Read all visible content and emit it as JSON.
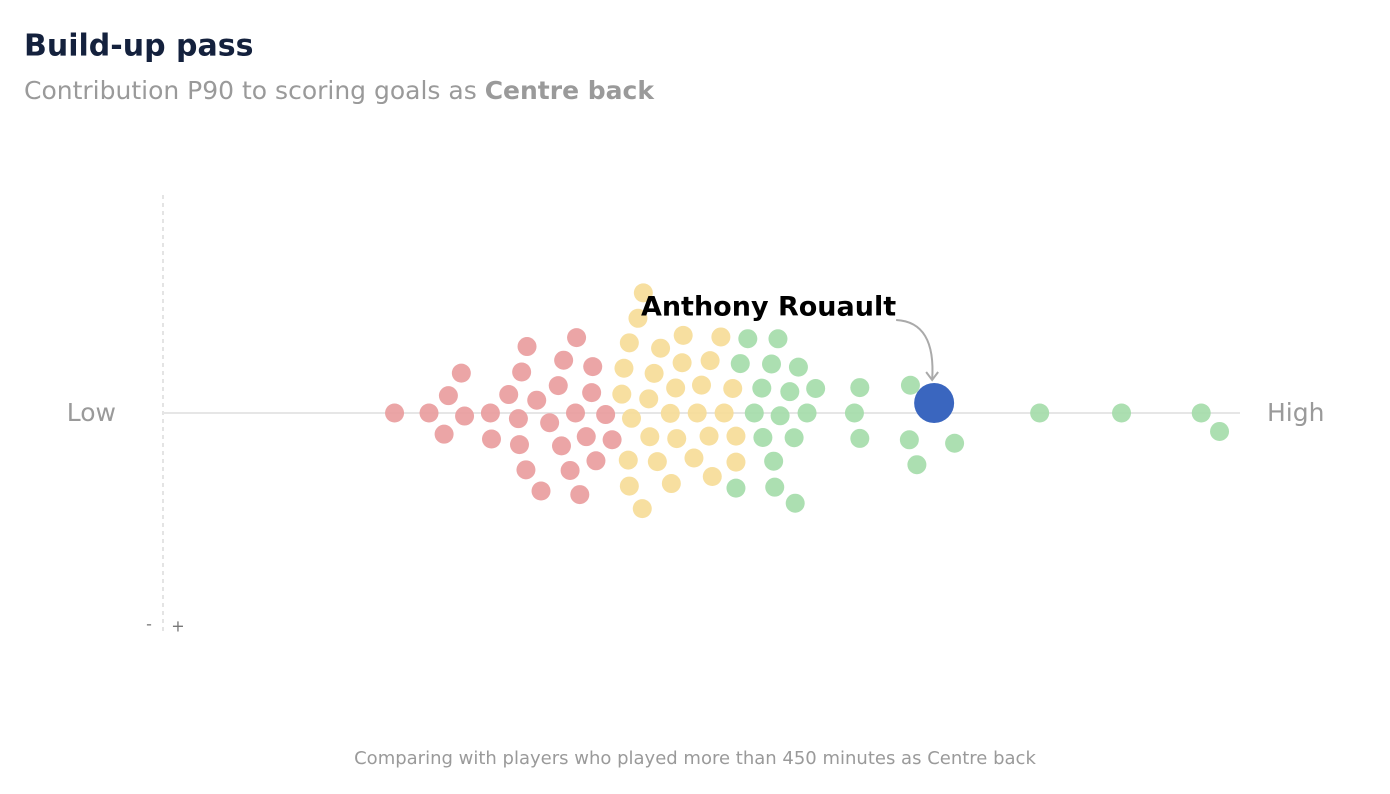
{
  "chart_data": {
    "type": "beeswarm",
    "title": "Build-up pass",
    "subtitle": "Contribution P90 to scoring goals as",
    "subtitle_bold": "Centre back",
    "low_label": "Low",
    "high_label": "High",
    "minus_label": "-",
    "plus_label": "+",
    "footnote": "Comparing with players who played more than 450 minutes as Centre back",
    "xlim": [
      0,
      100
    ],
    "series": [
      {
        "color": "#e99b9c",
        "values": [
          21.5,
          24.7,
          26.5,
          26.1,
          28.0,
          27.7,
          30.5,
          30.4,
          32.1,
          33.8,
          33.7,
          33.3,
          33.1,
          33.0,
          34.7,
          35.1,
          35.9,
          36.7,
          37.0,
          37.2,
          37.8,
          38.3,
          38.4,
          38.7,
          39.3,
          39.8,
          39.9,
          40.2,
          41.1,
          41.7
        ]
      },
      {
        "color": "#f6db96",
        "values": [
          42.6,
          42.8,
          43.2,
          43.3,
          43.3,
          43.5,
          44.1,
          44.5,
          44.6,
          45.1,
          45.2,
          45.6,
          45.9,
          46.2,
          47.1,
          47.2,
          47.6,
          47.7,
          48.2,
          48.3,
          49.3,
          49.6,
          50.0,
          50.7,
          50.8,
          51.0,
          51.8,
          52.1,
          52.9,
          53.2,
          53.2
        ]
      },
      {
        "color": "#a3dca8",
        "values": [
          53.2,
          53.6,
          54.3,
          54.9,
          55.6,
          55.7,
          56.5,
          56.7,
          56.8,
          57.1,
          57.3,
          58.2,
          58.6,
          58.7,
          59.0,
          59.8,
          60.6,
          64.2,
          64.7,
          64.7,
          69.3,
          69.4,
          70.0,
          73.5,
          81.4,
          89.0,
          96.4,
          98.1
        ]
      }
    ],
    "highlight": {
      "name": "Anthony Rouault",
      "value": 71.6,
      "color": "#3a66bf"
    }
  }
}
